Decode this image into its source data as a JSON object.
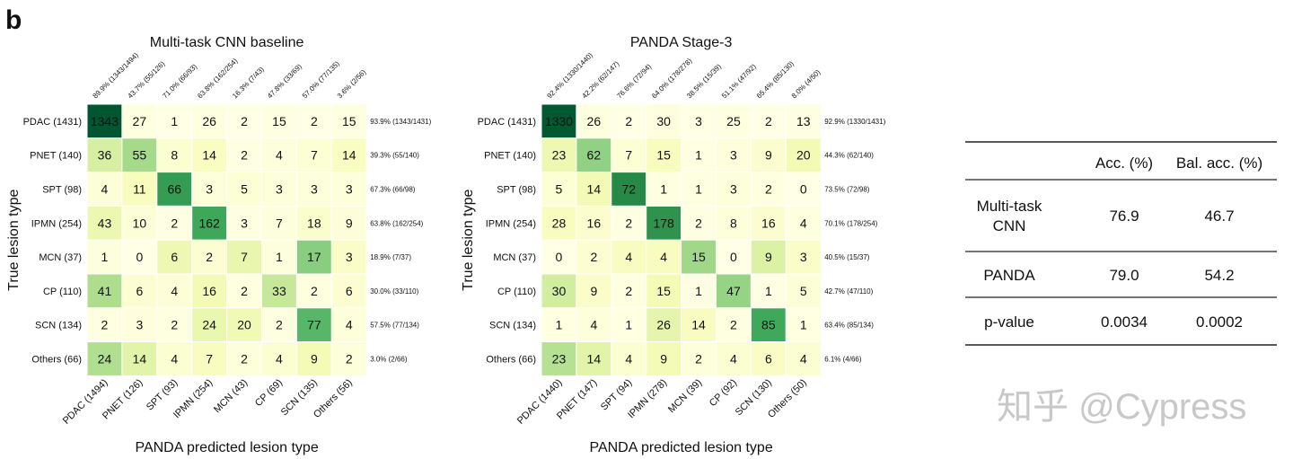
{
  "panel_label": "b",
  "chart_data": [
    {
      "type": "heatmap",
      "title": "Multi-task CNN baseline",
      "xlabel": "PANDA predicted lesion type",
      "ylabel": "True lesion type",
      "row_labels": [
        "PDAC (1431)",
        "PNET (140)",
        "SPT (98)",
        "IPMN (254)",
        "MCN (37)",
        "CP (110)",
        "SCN (134)",
        "Others (66)"
      ],
      "col_labels": [
        "PDAC (1494)",
        "PNET (126)",
        "SPT (93)",
        "IPMN (254)",
        "MCN (43)",
        "CP (69)",
        "SCN (135)",
        "Others (56)"
      ],
      "matrix": [
        [
          1343,
          27,
          1,
          26,
          2,
          15,
          2,
          15
        ],
        [
          36,
          55,
          8,
          14,
          2,
          4,
          7,
          14
        ],
        [
          4,
          11,
          66,
          3,
          5,
          3,
          3,
          3
        ],
        [
          43,
          10,
          2,
          162,
          3,
          7,
          18,
          9
        ],
        [
          1,
          0,
          6,
          2,
          7,
          1,
          17,
          3
        ],
        [
          41,
          6,
          4,
          16,
          2,
          33,
          2,
          6
        ],
        [
          2,
          3,
          2,
          24,
          20,
          2,
          77,
          4
        ],
        [
          24,
          14,
          4,
          7,
          2,
          4,
          9,
          2
        ]
      ],
      "col_precision": [
        "89.9% (1343/1494)",
        "43.7% (55/126)",
        "71.0% (66/93)",
        "63.8% (162/254)",
        "16.3% (7/43)",
        "47.8% (33/69)",
        "57.0% (77/135)",
        "3.6% (2/56)"
      ],
      "row_recall": [
        "93.9% (1343/1431)",
        "39.3% (55/140)",
        "67.3% (66/98)",
        "63.8% (162/254)",
        "18.9% (7/37)",
        "30.0% (33/110)",
        "57.5% (77/134)",
        "3.0% (2/66)"
      ],
      "colormap": "YlGn",
      "color_normalization": "row"
    },
    {
      "type": "heatmap",
      "title": "PANDA Stage-3",
      "xlabel": "PANDA predicted lesion type",
      "ylabel": "True lesion type",
      "row_labels": [
        "PDAC (1431)",
        "PNET (140)",
        "SPT (98)",
        "IPMN (254)",
        "MCN (37)",
        "CP (110)",
        "SCN (134)",
        "Others (66)"
      ],
      "col_labels": [
        "PDAC (1440)",
        "PNET (147)",
        "SPT (94)",
        "IPMN (278)",
        "MCN (39)",
        "CP (92)",
        "SCN (130)",
        "Others (50)"
      ],
      "matrix": [
        [
          1330,
          26,
          2,
          30,
          3,
          25,
          2,
          13
        ],
        [
          23,
          62,
          7,
          15,
          1,
          3,
          9,
          20
        ],
        [
          5,
          14,
          72,
          1,
          1,
          3,
          2,
          0
        ],
        [
          28,
          16,
          2,
          178,
          2,
          8,
          16,
          4
        ],
        [
          0,
          2,
          4,
          4,
          15,
          0,
          9,
          3
        ],
        [
          30,
          9,
          2,
          15,
          1,
          47,
          1,
          5
        ],
        [
          1,
          4,
          1,
          26,
          14,
          2,
          85,
          1
        ],
        [
          23,
          14,
          4,
          9,
          2,
          4,
          6,
          4
        ]
      ],
      "col_precision": [
        "92.4% (1330/1440)",
        "42.2% (62/147)",
        "76.6% (72/94)",
        "64.0% (178/278)",
        "38.5% (15/39)",
        "51.1% (47/92)",
        "65.4% (85/130)",
        "8.0% (4/50)"
      ],
      "row_recall": [
        "92.9% (1330/1431)",
        "44.3% (62/140)",
        "73.5% (72/98)",
        "70.1% (178/254)",
        "40.5% (15/37)",
        "42.7% (47/110)",
        "63.4% (85/134)",
        "6.1% (4/66)"
      ],
      "colormap": "YlGn",
      "color_normalization": "row"
    }
  ],
  "table": {
    "headers": [
      "",
      "Acc. (%)",
      "Bal. acc. (%)"
    ],
    "rows": [
      {
        "label": [
          "Multi-task",
          "CNN"
        ],
        "acc": "76.9",
        "bal": "46.7"
      },
      {
        "label": [
          "PANDA"
        ],
        "acc": "79.0",
        "bal": "54.2"
      },
      {
        "label": [
          "p-value"
        ],
        "acc": "0.0034",
        "bal": "0.0002"
      }
    ]
  },
  "watermark": "知乎 @Cypress"
}
